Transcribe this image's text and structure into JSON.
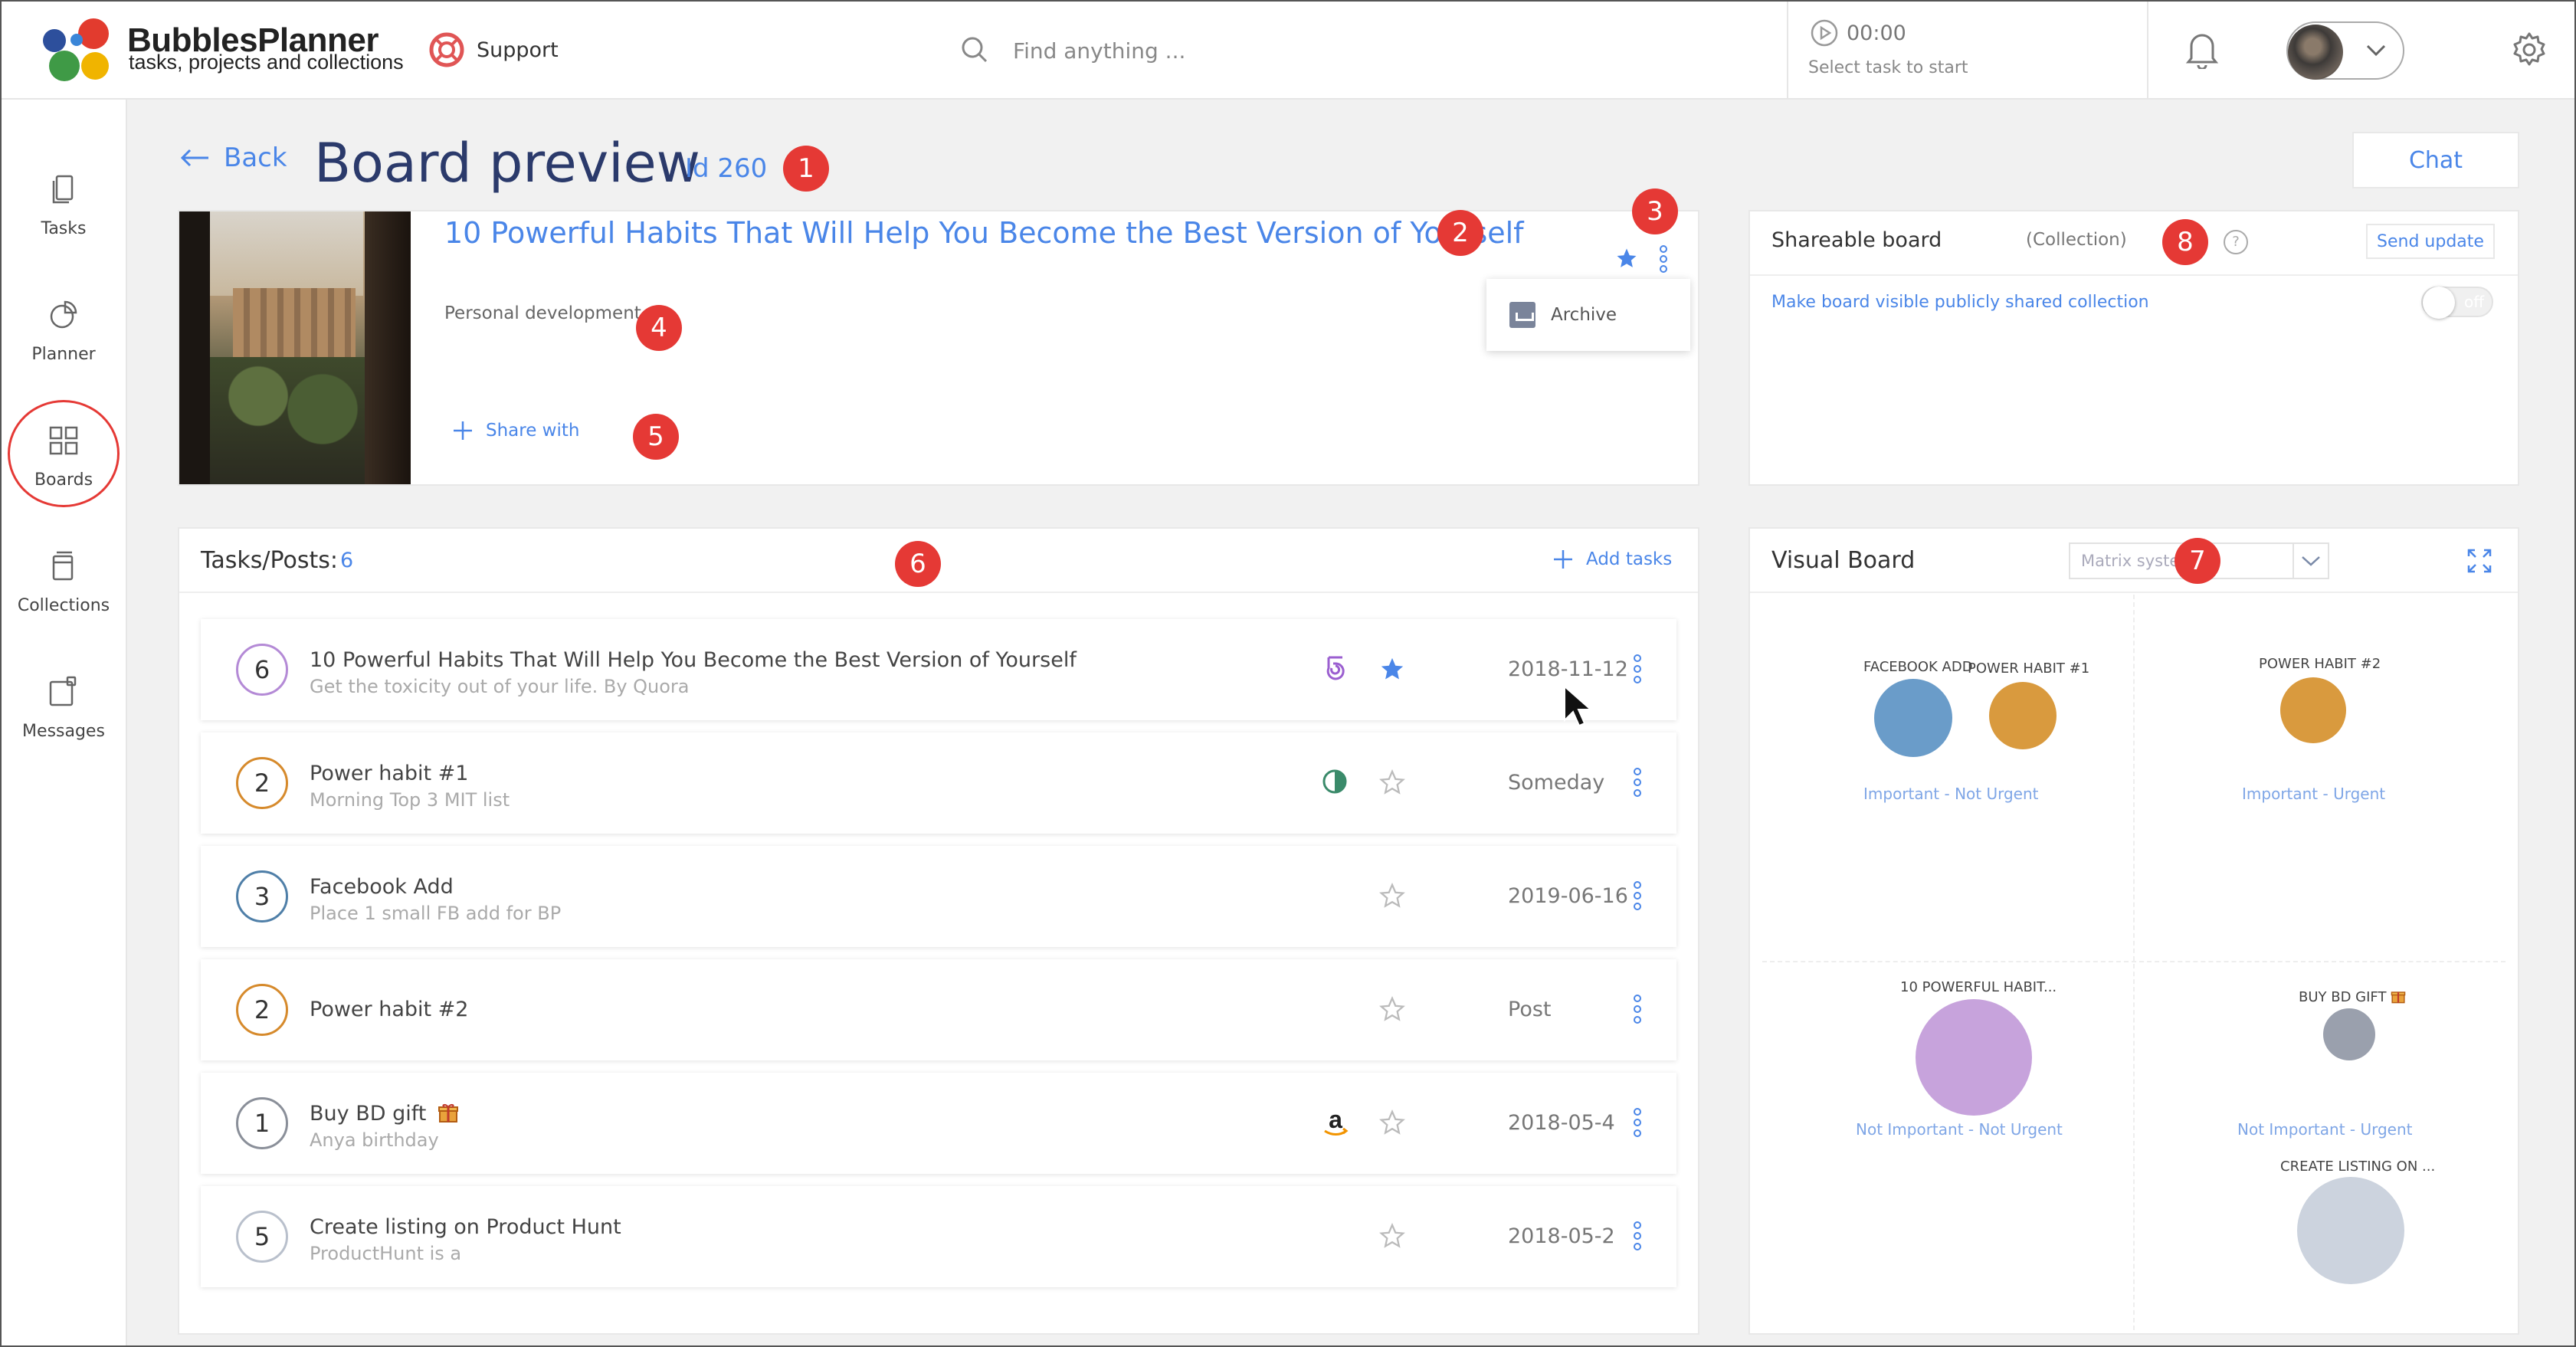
{
  "app": {
    "name": "BubblesPlanner",
    "tagline": "tasks, projects and collections"
  },
  "header": {
    "support_label": "Support",
    "search_placeholder": "Find anything ...",
    "timer_time": "00:00",
    "timer_hint": "Select task to start"
  },
  "sidebar": {
    "items": [
      {
        "label": "Tasks",
        "icon": "tasks-icon"
      },
      {
        "label": "Planner",
        "icon": "planner-icon"
      },
      {
        "label": "Boards",
        "icon": "boards-icon",
        "active": true
      },
      {
        "label": "Collections",
        "icon": "collections-icon"
      },
      {
        "label": "Messages",
        "icon": "messages-icon"
      }
    ]
  },
  "page": {
    "back_label": "Back",
    "title": "Board preview",
    "id_label": "Id 260",
    "chat_label": "Chat"
  },
  "board_card": {
    "title": "10 Powerful Habits That Will Help You Become the Best Version of Yourself",
    "category": "Personal development",
    "share_label": "Share with",
    "starred": true,
    "menu_items": [
      "Archive"
    ]
  },
  "shareable": {
    "title": "Shareable board",
    "type": "(Collection)",
    "help": "?",
    "send_update_label": "Send update",
    "public_link": "Make board visible publicly shared collection",
    "toggle_label": "off",
    "toggle_on": false
  },
  "tasks_panel": {
    "title": "Tasks/Posts:",
    "count": "6",
    "add_label": "Add tasks",
    "rows": [
      {
        "priority": "6",
        "ring": "#b48ad6",
        "title": "10 Powerful Habits That Will Help You Become the Best Version of Yourself",
        "subtitle": "Get the toxicity out of your life. By Quora",
        "badge": "spiral-icon",
        "starred": true,
        "date": "2018-11-12"
      },
      {
        "priority": "2",
        "ring": "#d68a2c",
        "title": "Power habit #1",
        "subtitle": "Morning Top 3 MIT list",
        "badge": "half-circle-icon",
        "starred": false,
        "date": "Someday"
      },
      {
        "priority": "3",
        "ring": "#4f7fa8",
        "title": "Facebook Add",
        "subtitle": "Place 1 small FB add for BP",
        "badge": "",
        "starred": false,
        "date": "2019-06-16"
      },
      {
        "priority": "2",
        "ring": "#d68a2c",
        "title": "Power habit #2",
        "subtitle": "",
        "badge": "",
        "starred": false,
        "date": "Post"
      },
      {
        "priority": "1",
        "ring": "#8a8f99",
        "title": "Buy BD gift",
        "subtitle": "Anya birthday",
        "badge": "amazon-icon",
        "starred": false,
        "date": "2018-05-4",
        "title_icon": "gift-icon"
      },
      {
        "priority": "5",
        "ring": "#b9c0cc",
        "title": "Create listing on Product Hunt",
        "subtitle": "ProductHunt is a",
        "badge": "",
        "starred": false,
        "date": "2018-05-2"
      }
    ]
  },
  "visual_board": {
    "title": "Visual Board",
    "select_value": "Matrix system",
    "quadrants": [
      "Important - Not Urgent",
      "Important - Urgent",
      "Not Important - Not Urgent",
      "Not Important - Urgent"
    ],
    "bubbles": [
      {
        "label": "FACEBOOK ADD",
        "color": "#6a9cc9"
      },
      {
        "label": "POWER HABIT #1",
        "color": "#d99a3e"
      },
      {
        "label": "POWER HABIT #2",
        "color": "#d99a3e"
      },
      {
        "label": "10 POWERFUL HABIT...",
        "color": "#c7a3dc"
      },
      {
        "label": "BUY BD GIFT",
        "color": "#9aa0ad"
      },
      {
        "label": "CREATE LISTING ON ...",
        "color": "#ccd3de"
      }
    ]
  },
  "annotations": [
    "1",
    "2",
    "3",
    "4",
    "5",
    "6",
    "7",
    "8"
  ],
  "colors": {
    "accent": "#4a86e8",
    "title": "#2b3a6b",
    "marker": "#e53935"
  }
}
